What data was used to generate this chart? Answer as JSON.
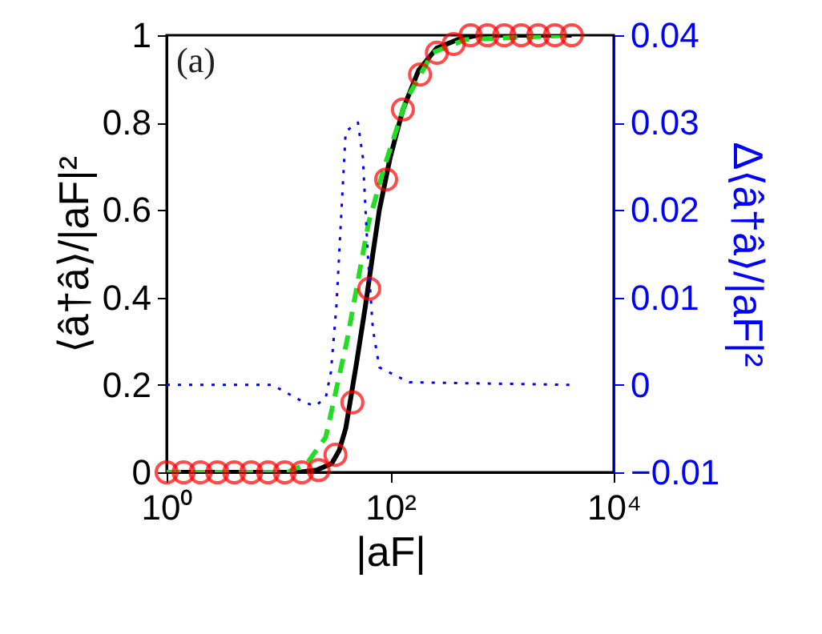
{
  "chart_data": {
    "type": "line",
    "xlabel": "|aF|",
    "ylabel": "⟨â†â⟩/|aF|²",
    "y2label": "Δ⟨â†â⟩/|aF|²",
    "annotations": [
      "(a)"
    ],
    "log": "x",
    "grid": false,
    "legend": false,
    "xlim": [
      1,
      10000
    ],
    "xticks": [
      {
        "value": 1,
        "label": "10⁰"
      },
      {
        "value": 100,
        "label": "10²"
      },
      {
        "value": 10000,
        "label": "10⁴"
      }
    ],
    "ylim": [
      0,
      1
    ],
    "yticks": [
      0,
      0.2,
      0.4,
      0.6,
      0.8,
      1
    ],
    "y2lim": [
      -0.01,
      0.04
    ],
    "y2ticks": [
      -0.01,
      0,
      0.01,
      0.02,
      0.03,
      0.04
    ],
    "series": [
      {
        "type": "line",
        "color": "#000000",
        "line_style": "solid",
        "x": [
          1,
          15,
          22,
          30,
          35,
          40,
          50,
          60,
          70,
          80,
          100,
          130,
          180,
          260,
          400,
          600,
          4200
        ],
        "values": [
          0,
          0,
          0.005,
          0.02,
          0.05,
          0.1,
          0.25,
          0.38,
          0.5,
          0.6,
          0.72,
          0.83,
          0.92,
          0.97,
          0.99,
          1,
          1
        ]
      },
      {
        "type": "line",
        "color": "#22dd22",
        "line_style": "dashed",
        "x": [
          1,
          12,
          18,
          26.5,
          41,
          64,
          89,
          138,
          240,
          470,
          4200
        ],
        "values": [
          0,
          0,
          0.02,
          0.08,
          0.3,
          0.57,
          0.7,
          0.85,
          0.96,
          0.99,
          1
        ]
      },
      {
        "type": "scatter",
        "color": "#ff0000",
        "marker": "circle",
        "x": [
          1,
          1.42,
          2.01,
          2.84,
          4.03,
          5.71,
          8.08,
          11.4,
          16.2,
          22.9,
          32.4,
          45.9,
          65,
          92,
          130,
          185,
          262,
          370,
          524,
          742,
          1050,
          1490,
          2110,
          2980,
          4220
        ],
        "values": [
          0,
          0,
          0,
          0,
          0,
          0,
          0,
          0,
          0,
          0.005,
          0.04,
          0.16,
          0.42,
          0.67,
          0.83,
          0.91,
          0.96,
          0.98,
          1,
          1,
          1,
          1,
          1,
          1,
          1
        ]
      },
      {
        "type": "line",
        "axis": "y2",
        "color": "#0000ff",
        "line_style": "dotted",
        "x": [
          1,
          8.8,
          17,
          21.3,
          26.5,
          29.5,
          33,
          40,
          51.5,
          57,
          63,
          70,
          80,
          148,
          4300
        ],
        "values": [
          0,
          0,
          -0.002,
          -0.0024,
          -0.0015,
          0.0015,
          0.0089,
          0.029,
          0.03,
          0.026,
          0.015,
          0.0064,
          0.002,
          0.0003,
          0
        ]
      }
    ]
  }
}
